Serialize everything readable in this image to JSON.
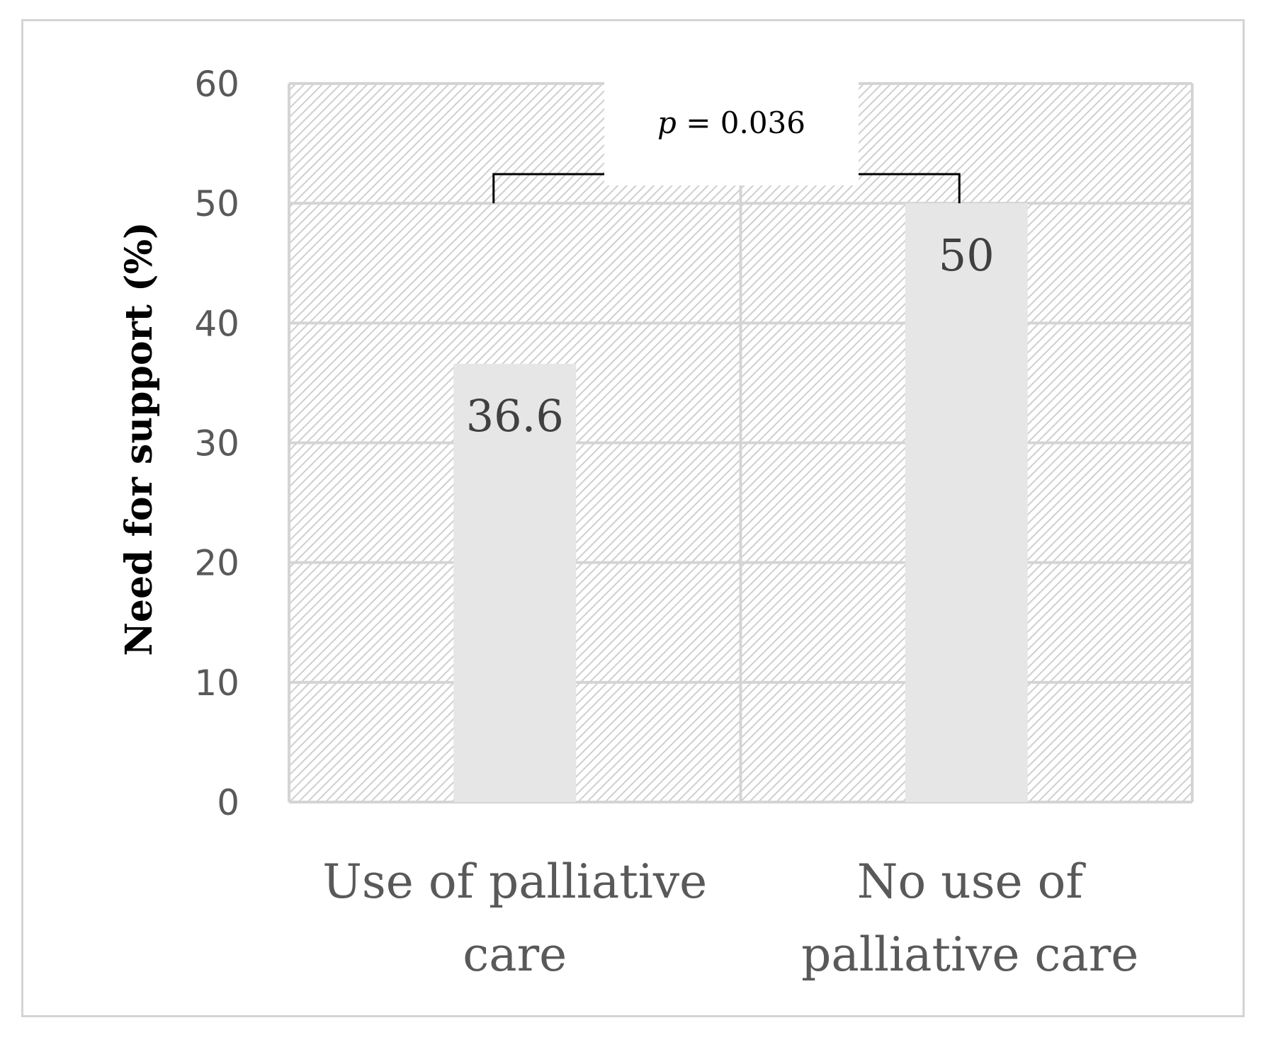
{
  "chart_data": {
    "type": "bar",
    "categories": [
      "Use of palliative care",
      "No use of palliative care"
    ],
    "category_lines": [
      [
        "Use of palliative",
        "care"
      ],
      [
        "No use of",
        "palliative care"
      ]
    ],
    "values": [
      36.6,
      50
    ],
    "value_labels": [
      "36.6",
      "50"
    ],
    "ylabel": "Need for support (%)",
    "xlabel": "",
    "title": "",
    "ylim": [
      0,
      60
    ],
    "yticks": [
      0,
      10,
      20,
      30,
      40,
      50,
      60
    ],
    "grid": true,
    "annotation": {
      "prefix": "p",
      "text": " = 0.036",
      "compares": [
        "Use of palliative care",
        "No use of palliative care"
      ]
    }
  },
  "colors": {
    "bar": "#e6e6e6",
    "grid": "#d4d4d4",
    "hatch": "#d0d0d0",
    "text": "#595959"
  }
}
